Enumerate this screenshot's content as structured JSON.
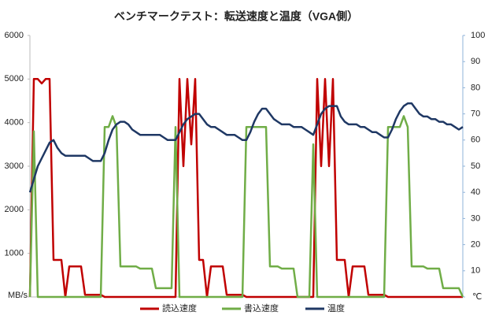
{
  "chart_data": {
    "type": "line",
    "title": "ベンチマークテスト：転送速度と温度（VGA側）",
    "y_label": "MB/s",
    "y2_label": "℃",
    "categories": [
      null,
      null,
      null,
      null,
      null,
      null,
      null,
      null,
      null,
      null,
      null,
      null,
      null,
      null,
      null,
      null,
      null,
      null,
      null,
      null,
      null,
      null,
      null,
      null,
      null,
      null,
      null,
      null,
      null,
      null,
      null,
      null,
      null,
      null,
      null,
      null,
      null,
      null,
      null,
      null,
      null,
      null,
      null,
      null,
      null,
      null,
      null,
      null,
      null,
      null,
      null,
      null,
      null,
      null,
      null,
      null,
      null,
      null,
      null,
      null,
      null,
      null,
      null,
      null,
      null,
      null,
      null,
      null,
      null,
      null,
      null,
      null,
      null,
      null,
      null,
      null,
      null,
      null,
      null,
      null,
      null,
      null,
      null,
      null,
      null,
      null,
      null,
      null,
      null,
      null,
      null,
      null,
      null,
      null,
      null,
      null,
      null,
      null,
      null,
      null,
      null,
      null,
      null,
      null,
      null,
      null,
      null,
      null,
      null,
      null,
      null
    ],
    "series": [
      {
        "name": "読込速度",
        "color": "#c00000",
        "axis": "y",
        "values": [
          0,
          5000,
          5000,
          4900,
          5000,
          5000,
          850,
          850,
          850,
          0,
          700,
          700,
          700,
          700,
          50,
          50,
          50,
          50,
          50,
          0,
          0,
          0,
          0,
          0,
          0,
          0,
          0,
          0,
          0,
          0,
          0,
          0,
          0,
          0,
          0,
          0,
          0,
          0,
          5000,
          3000,
          5000,
          3500,
          5000,
          850,
          850,
          0,
          700,
          700,
          700,
          700,
          50,
          50,
          50,
          50,
          50,
          0,
          0,
          0,
          0,
          0,
          0,
          0,
          0,
          0,
          0,
          0,
          0,
          0,
          0,
          0,
          0,
          0,
          0,
          5000,
          3000,
          5000,
          3000,
          5000,
          850,
          850,
          850,
          0,
          700,
          700,
          700,
          700,
          50,
          50,
          50,
          50,
          50,
          0,
          0,
          0,
          0,
          0,
          0,
          0,
          0,
          0,
          0,
          0,
          0,
          0,
          0,
          0,
          0,
          0,
          0,
          0,
          0
        ]
      },
      {
        "name": "書込速度",
        "color": "#70ad47",
        "axis": "y",
        "values": [
          0,
          3800,
          0,
          0,
          0,
          0,
          0,
          0,
          0,
          0,
          0,
          0,
          0,
          0,
          0,
          0,
          0,
          0,
          0,
          3900,
          3900,
          4150,
          3900,
          700,
          700,
          700,
          700,
          700,
          650,
          650,
          650,
          650,
          200,
          200,
          200,
          200,
          200,
          3900,
          0,
          0,
          0,
          0,
          0,
          0,
          0,
          0,
          0,
          0,
          0,
          0,
          0,
          0,
          0,
          0,
          0,
          3900,
          3900,
          3900,
          3900,
          3900,
          3900,
          700,
          700,
          700,
          650,
          650,
          650,
          650,
          0,
          0,
          0,
          0,
          3500,
          0,
          0,
          0,
          0,
          0,
          0,
          0,
          0,
          0,
          0,
          0,
          0,
          0,
          0,
          0,
          0,
          0,
          0,
          3900,
          3900,
          3900,
          3900,
          4150,
          3900,
          700,
          700,
          700,
          700,
          650,
          650,
          650,
          650,
          200,
          200,
          200,
          200,
          200,
          0
        ]
      },
      {
        "name": "温度",
        "color": "#1f3864",
        "axis": "y2",
        "values": [
          40,
          45,
          50,
          53,
          56,
          59,
          60,
          57,
          55,
          54,
          54,
          54,
          54,
          54,
          54,
          53,
          52,
          52,
          52,
          55,
          60,
          64,
          66,
          67,
          67,
          66,
          64,
          63,
          62,
          62,
          62,
          62,
          62,
          62,
          61,
          60,
          60,
          60,
          63,
          66,
          68,
          69,
          70,
          70,
          68,
          66,
          65,
          65,
          64,
          63,
          62,
          62,
          62,
          61,
          60,
          60,
          63,
          67,
          70,
          72,
          72,
          70,
          68,
          67,
          66,
          66,
          66,
          65,
          65,
          65,
          64,
          63,
          62,
          66,
          70,
          72,
          73,
          73,
          73,
          69,
          67,
          66,
          66,
          66,
          65,
          65,
          64,
          63,
          63,
          62,
          61,
          61,
          64,
          68,
          71,
          73,
          74,
          74,
          72,
          70,
          69,
          69,
          68,
          68,
          67,
          67,
          66,
          66,
          65,
          64,
          65
        ]
      }
    ],
    "ylim": [
      0,
      6000
    ],
    "yticks": [
      0,
      1000,
      2000,
      3000,
      4000,
      5000,
      6000
    ],
    "y2lim": [
      0,
      100
    ],
    "y2ticks": [
      0,
      10,
      20,
      30,
      40,
      50,
      60,
      70,
      80,
      90,
      100
    ]
  }
}
